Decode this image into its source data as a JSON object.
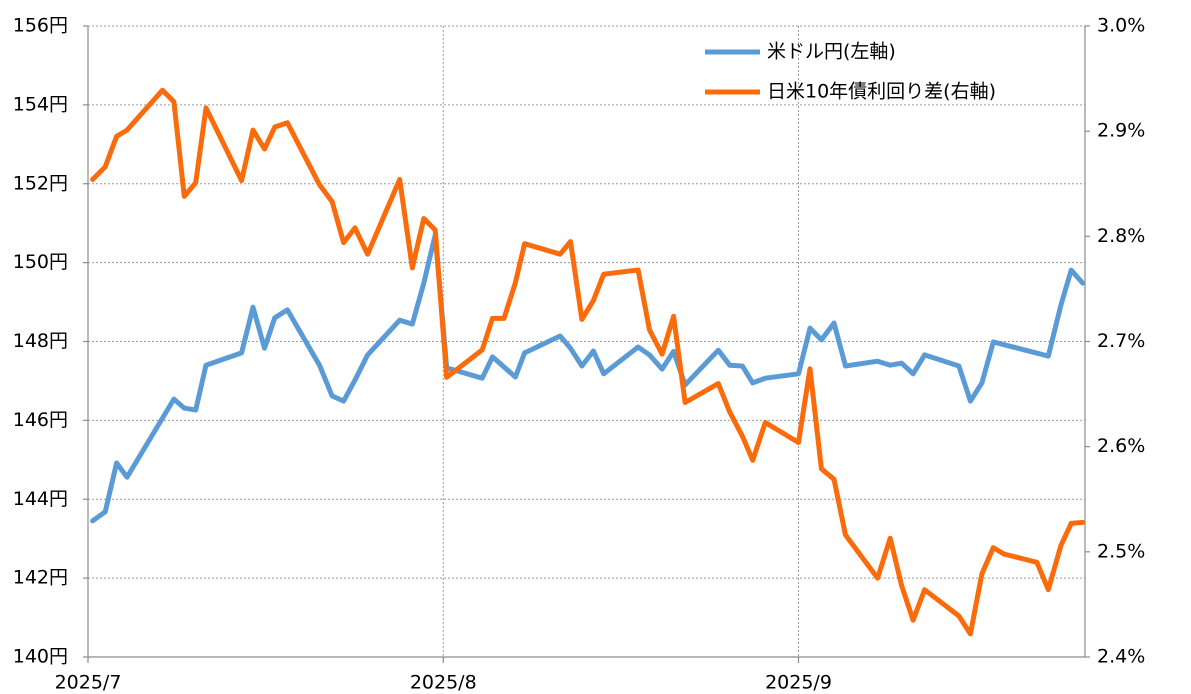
{
  "chart_data": {
    "type": "line",
    "xticks": [
      {
        "value": 1,
        "label": "2025/7"
      },
      {
        "value": 32,
        "label": "2025/8"
      },
      {
        "value": 63,
        "label": "2025/9"
      }
    ],
    "xlim": [
      1,
      88
    ],
    "ylim": [
      140,
      156
    ],
    "yticks": [
      {
        "value": 140,
        "label": "140円"
      },
      {
        "value": 142,
        "label": "142円"
      },
      {
        "value": 144,
        "label": "144円"
      },
      {
        "value": 146,
        "label": "146円"
      },
      {
        "value": 148,
        "label": "148円"
      },
      {
        "value": 150,
        "label": "150円"
      },
      {
        "value": 152,
        "label": "152円"
      },
      {
        "value": 154,
        "label": "154円"
      },
      {
        "value": 156,
        "label": "156円"
      }
    ],
    "y2lim": [
      2.4,
      3.0
    ],
    "y2ticks": [
      {
        "value": 2.4,
        "label": "2.4%"
      },
      {
        "value": 2.5,
        "label": "2.5%"
      },
      {
        "value": 2.6,
        "label": "2.6%"
      },
      {
        "value": 2.7,
        "label": "2.7%"
      },
      {
        "value": 2.8,
        "label": "2.8%"
      },
      {
        "value": 2.9,
        "label": "2.9%"
      },
      {
        "value": 3.0,
        "label": "3.0%"
      }
    ],
    "grid": true,
    "legend": "upper right",
    "series": [
      {
        "name": "米ドル円(左軸)",
        "color": "#5b9bd5",
        "axis": "y",
        "x": [
          1.4,
          2.5,
          3.5,
          4.4,
          8.5,
          9.4,
          10.4,
          11.3,
          14.4,
          15.4,
          16.4,
          17.3,
          18.4,
          21.2,
          22.3,
          23.3,
          24.3,
          25.4,
          28.2,
          29.3,
          30.3,
          31.3,
          32.3,
          35.4,
          36.3,
          38.3,
          39.1,
          42.2,
          43.1,
          44.1,
          45.1,
          46.0,
          49.0,
          50.0,
          51.1,
          52.1,
          53.1,
          56.0,
          57.0,
          58.1,
          59.0,
          60.1,
          63.0,
          64.0,
          65.0,
          66.1,
          67.1,
          69.9,
          71.0,
          72.0,
          73.0,
          74.0,
          77.0,
          78.0,
          79.0,
          80.0,
          84.8,
          85.9,
          86.8,
          87.8
        ],
        "values": [
          143.45,
          143.68,
          144.92,
          144.56,
          146.54,
          146.31,
          146.26,
          147.4,
          147.71,
          148.87,
          147.83,
          148.6,
          148.8,
          147.4,
          146.62,
          146.49,
          147.02,
          147.66,
          148.54,
          148.44,
          149.48,
          150.7,
          147.33,
          147.07,
          147.61,
          147.1,
          147.71,
          148.14,
          147.83,
          147.38,
          147.76,
          147.18,
          147.86,
          147.66,
          147.3,
          147.75,
          146.9,
          147.78,
          147.4,
          147.38,
          146.95,
          147.07,
          147.18,
          148.34,
          148.04,
          148.47,
          147.38,
          147.5,
          147.4,
          147.45,
          147.18,
          147.66,
          147.38,
          146.49,
          146.95,
          147.99,
          147.63,
          148.92,
          149.81,
          149.48
        ]
      },
      {
        "name": "日米10年債利回り差(右軸)",
        "color": "#fa6b0c",
        "axis": "y2",
        "x": [
          1.4,
          2.5,
          3.5,
          4.4,
          7.5,
          8.5,
          9.4,
          10.4,
          11.3,
          14.4,
          15.4,
          16.4,
          17.3,
          18.4,
          21.2,
          22.3,
          23.3,
          24.3,
          25.4,
          28.2,
          29.3,
          30.3,
          31.3,
          32.3,
          35.4,
          36.3,
          37.3,
          38.3,
          39.1,
          42.2,
          43.1,
          44.1,
          45.1,
          46.0,
          49.0,
          50.0,
          51.1,
          52.1,
          53.1,
          56.0,
          57.0,
          58.1,
          59.0,
          60.1,
          63.0,
          64.0,
          65.0,
          66.1,
          67.1,
          69.9,
          71.0,
          72.0,
          73.0,
          74.0,
          77.0,
          78.0,
          79.0,
          80.0,
          80.9,
          83.8,
          84.8,
          85.9,
          86.8,
          87.8
        ],
        "values": [
          2.854,
          2.866,
          2.895,
          2.901,
          2.939,
          2.928,
          2.838,
          2.851,
          2.922,
          2.853,
          2.901,
          2.883,
          2.904,
          2.908,
          2.849,
          2.833,
          2.794,
          2.808,
          2.783,
          2.854,
          2.77,
          2.817,
          2.806,
          2.666,
          2.692,
          2.722,
          2.722,
          2.756,
          2.793,
          2.783,
          2.795,
          2.721,
          2.739,
          2.764,
          2.768,
          2.711,
          2.688,
          2.724,
          2.642,
          2.66,
          2.633,
          2.61,
          2.587,
          2.623,
          2.604,
          2.674,
          2.579,
          2.569,
          2.516,
          2.475,
          2.513,
          2.468,
          2.435,
          2.464,
          2.439,
          2.422,
          2.479,
          2.504,
          2.498,
          2.49,
          2.464,
          2.506,
          2.527,
          2.528
        ]
      }
    ]
  }
}
